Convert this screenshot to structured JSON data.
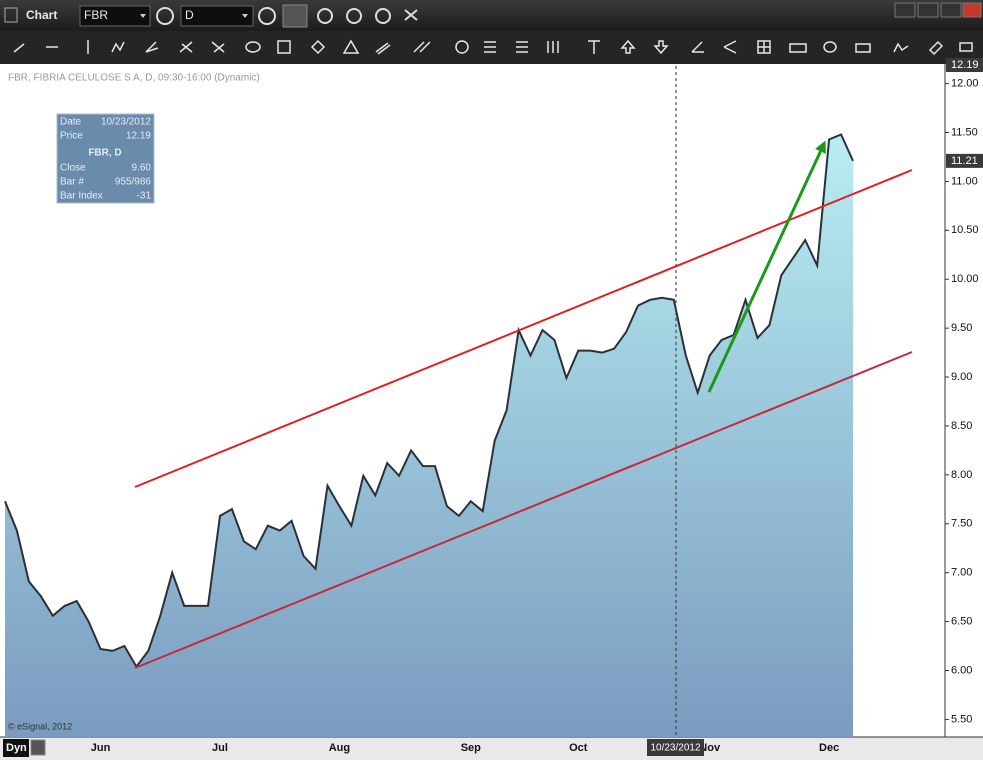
{
  "window": {
    "title": "Chart",
    "symbol": "FBR",
    "interval": "D"
  },
  "chart_data": {
    "type": "area",
    "title": "FBR, FIBRIA CELULOSE S A, D, 09:30-16:00 (Dynamic)",
    "categories": [
      null,
      null,
      null,
      null,
      null,
      null,
      null,
      null,
      "Jun",
      null,
      null,
      null,
      null,
      null,
      null,
      null,
      null,
      null,
      "Jul",
      null,
      null,
      null,
      null,
      null,
      null,
      null,
      null,
      null,
      "Aug",
      null,
      null,
      null,
      null,
      null,
      null,
      null,
      null,
      null,
      null,
      "Sep",
      null,
      null,
      null,
      null,
      null,
      null,
      null,
      null,
      "Oct",
      null,
      null,
      null,
      null,
      null,
      null,
      null,
      null,
      null,
      null,
      "Nov",
      null,
      null,
      null,
      null,
      null,
      null,
      null,
      null,
      null,
      "Dec",
      null,
      null
    ],
    "series": [
      {
        "color": "#2b3036",
        "values": [
          7.73,
          7.43,
          6.91,
          6.76,
          6.56,
          6.66,
          6.71,
          6.5,
          6.22,
          6.2,
          6.25,
          6.04,
          6.2,
          6.56,
          7.0,
          6.66,
          6.66,
          6.66,
          7.58,
          7.65,
          7.32,
          7.24,
          7.48,
          7.43,
          7.53,
          7.17,
          7.04,
          7.89,
          7.68,
          7.48,
          7.99,
          7.79,
          8.12,
          7.99,
          8.25,
          8.09,
          8.09,
          7.68,
          7.58,
          7.73,
          7.63,
          8.35,
          8.66,
          9.48,
          9.22,
          9.48,
          9.38,
          8.99,
          9.27,
          9.27,
          9.25,
          9.29,
          9.46,
          9.73,
          9.79,
          9.81,
          9.79,
          9.22,
          8.84,
          9.22,
          9.38,
          9.43,
          9.79,
          9.4,
          9.53,
          10.04,
          10.22,
          10.4,
          10.14,
          11.43,
          11.48,
          11.21
        ]
      }
    ],
    "ylim": [
      5.32,
      12.18
    ],
    "yticks": [
      {
        "value": 5.5,
        "label": "5.50"
      },
      {
        "value": 6,
        "label": "6.00"
      },
      {
        "value": 6.5,
        "label": "6.50"
      },
      {
        "value": 7,
        "label": "7.00"
      },
      {
        "value": 7.5,
        "label": "7.50"
      },
      {
        "value": 8,
        "label": "8.00"
      },
      {
        "value": 8.5,
        "label": "8.50"
      },
      {
        "value": 9,
        "label": "9.00"
      },
      {
        "value": 9.5,
        "label": "9.50"
      },
      {
        "value": 10,
        "label": "10.00"
      },
      {
        "value": 10.5,
        "label": "10.50"
      },
      {
        "value": 11,
        "label": "11.00"
      },
      {
        "value": 11.5,
        "label": "11.50"
      },
      {
        "value": 12,
        "label": "12.00"
      }
    ],
    "grid": false,
    "last_price": {
      "value": 11.21,
      "label": "11.21"
    },
    "crosshair": {
      "date": "10/23/2012",
      "price": {
        "value": 12.19,
        "label": "12.19"
      }
    },
    "copyright": "© eSignal, 2012"
  },
  "info_box": {
    "heading": "FBR, D",
    "rows": [
      [
        "Date",
        "10/23/2012"
      ],
      [
        "Price",
        "12.19"
      ],
      [
        "Close",
        "9.60"
      ],
      [
        "Bar #",
        "955/986"
      ],
      [
        "Bar Index",
        "-31"
      ]
    ]
  },
  "footer": {
    "mode": "Dyn"
  }
}
